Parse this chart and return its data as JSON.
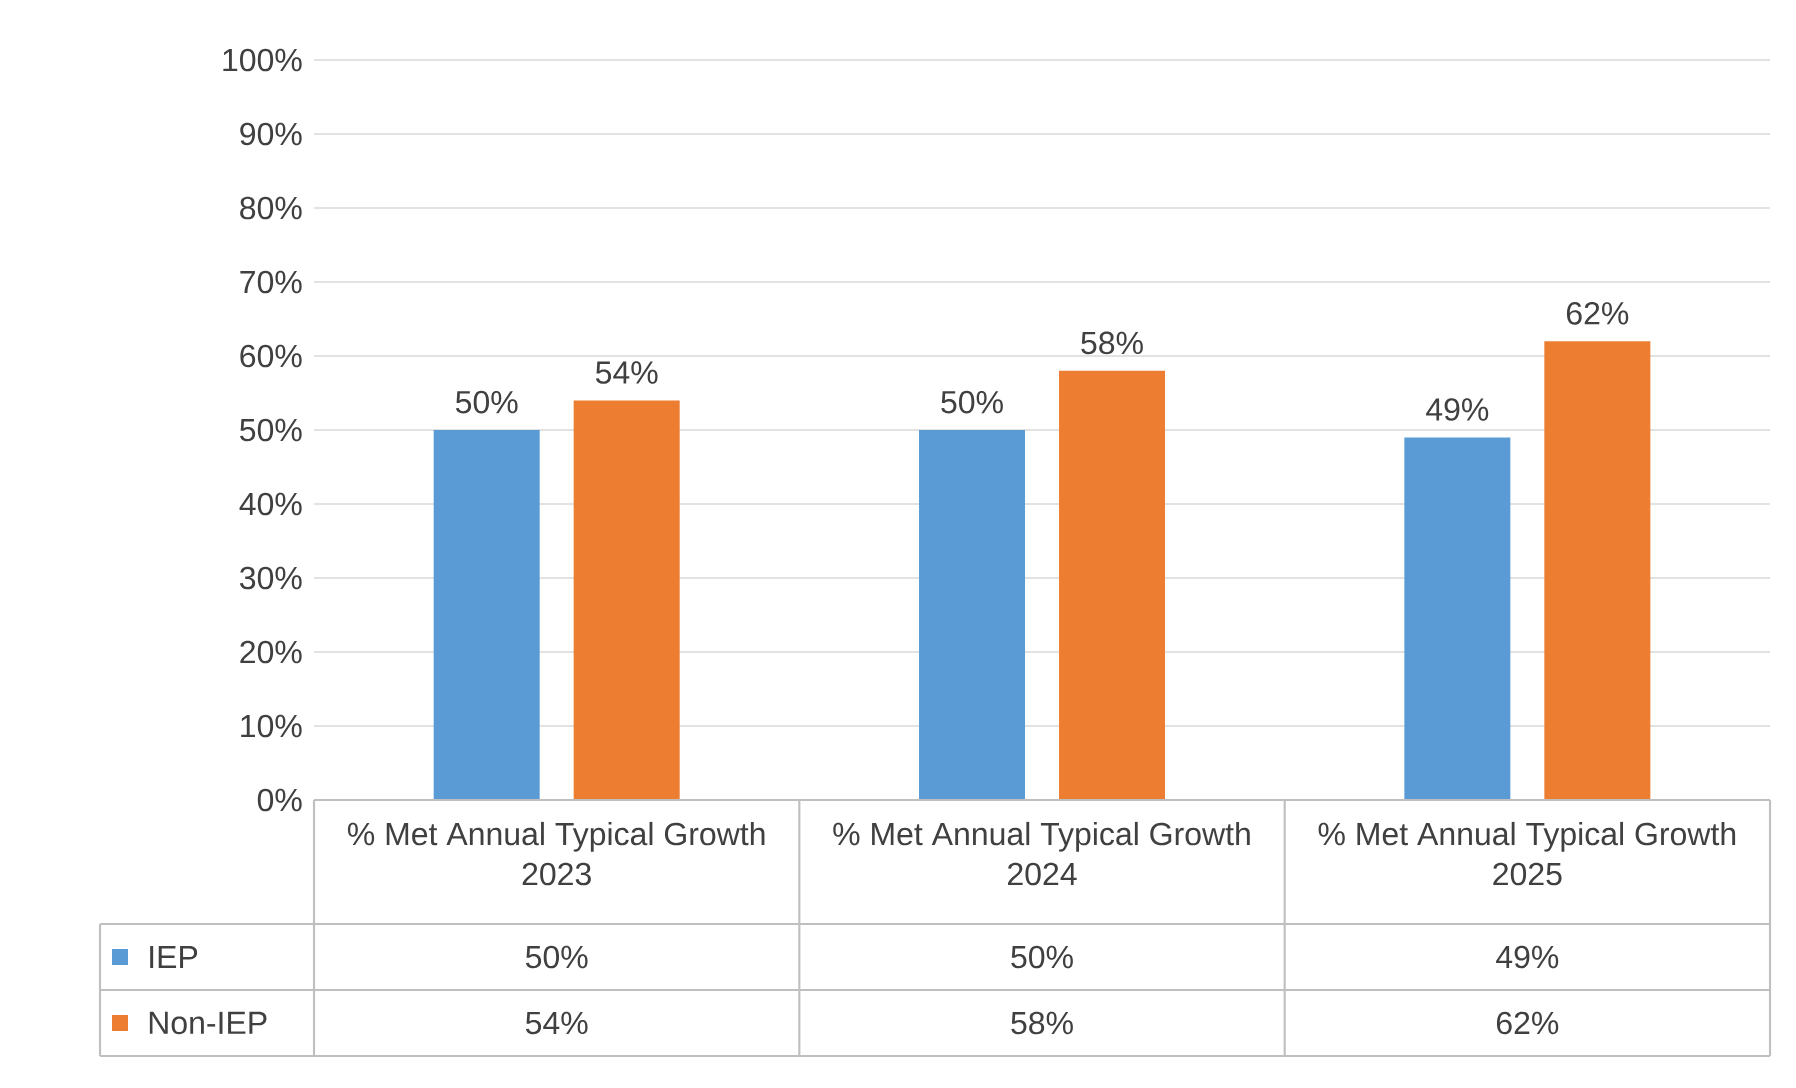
{
  "chart_data": {
    "type": "bar",
    "categories": [
      "% Met Annual Typical Growth 2023",
      "% Met Annual Typical Growth 2024",
      "% Met Annual Typical Growth 2025"
    ],
    "series": [
      {
        "name": "IEP",
        "color": "#5b9bd5",
        "values": [
          50,
          50,
          49
        ],
        "value_labels": [
          "50%",
          "50%",
          "49%"
        ]
      },
      {
        "name": "Non-IEP",
        "color": "#ed7d31",
        "values": [
          54,
          58,
          62
        ],
        "value_labels": [
          "54%",
          "58%",
          "62%"
        ]
      }
    ],
    "ylim": [
      0,
      100
    ],
    "yticks": [
      {
        "value": 0,
        "label": "0%"
      },
      {
        "value": 10,
        "label": "10%"
      },
      {
        "value": 20,
        "label": "20%"
      },
      {
        "value": 30,
        "label": "30%"
      },
      {
        "value": 40,
        "label": "40%"
      },
      {
        "value": 50,
        "label": "50%"
      },
      {
        "value": 60,
        "label": "60%"
      },
      {
        "value": 70,
        "label": "70%"
      },
      {
        "value": 80,
        "label": "80%"
      },
      {
        "value": 90,
        "label": "90%"
      },
      {
        "value": 100,
        "label": "100%"
      }
    ],
    "grid": "y",
    "legend": "bottom"
  }
}
